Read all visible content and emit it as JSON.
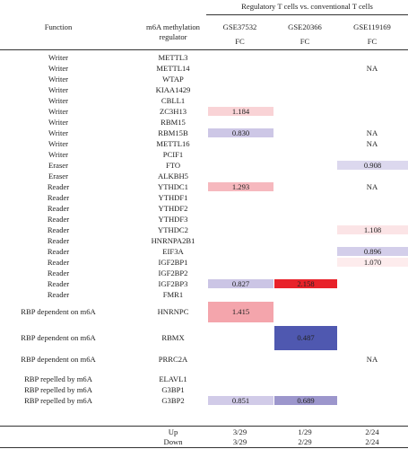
{
  "header": {
    "group_title": "Regulatory T cells vs. conventional T cells",
    "col_function": "Function",
    "col_regulator_line1": "m6A methylation",
    "col_regulator_line2": "regulator",
    "datasets": [
      "GSE37532",
      "GSE20366",
      "GSE119169"
    ],
    "fc_label": "FC"
  },
  "rows": [
    {
      "function": "Writer",
      "gene": "METTL3"
    },
    {
      "function": "Writer",
      "gene": "METTL14",
      "d3": "NA"
    },
    {
      "function": "Writer",
      "gene": "WTAP"
    },
    {
      "function": "Writer",
      "gene": "KIAA1429"
    },
    {
      "function": "Writer",
      "gene": "CBLL1"
    },
    {
      "function": "Writer",
      "gene": "ZC3H13",
      "d1": "1.184"
    },
    {
      "function": "Writer",
      "gene": "RBM15"
    },
    {
      "function": "Writer",
      "gene": "RBM15B",
      "d1": "0.830",
      "d3": "NA"
    },
    {
      "function": "Writer",
      "gene": "METTL16",
      "d3": "NA"
    },
    {
      "function": "Writer",
      "gene": "PCIF1"
    },
    {
      "function": "Eraser",
      "gene": "FTO",
      "d3": "0.908"
    },
    {
      "function": "Eraser",
      "gene": "ALKBH5"
    },
    {
      "function": "Reader",
      "gene": "YTHDC1",
      "d1": "1.293",
      "d3": "NA"
    },
    {
      "function": "Reader",
      "gene": "YTHDF1"
    },
    {
      "function": "Reader",
      "gene": "YTHDF2"
    },
    {
      "function": "Reader",
      "gene": "YTHDF3"
    },
    {
      "function": "Reader",
      "gene": "YTHDC2",
      "d3": "1.108"
    },
    {
      "function": "Reader",
      "gene": "HNRNPA2B1"
    },
    {
      "function": "Reader",
      "gene": "EIF3A",
      "d3": "0.896"
    },
    {
      "function": "Reader",
      "gene": "IGF2BP1",
      "d3": "1.070"
    },
    {
      "function": "Reader",
      "gene": "IGF2BP2"
    },
    {
      "function": "Reader",
      "gene": "IGF2BP3",
      "d1": "0.827",
      "d2": "2.158"
    },
    {
      "function": "Reader",
      "gene": "FMR1"
    },
    {
      "function": "RBP dependent on m6A",
      "gene": "HNRNPC",
      "d1": "1.415"
    },
    {
      "function": "RBP dependent on m6A",
      "gene": "RBMX",
      "d2": "0.487"
    },
    {
      "function": "RBP dependent on m6A",
      "gene": "PRRC2A",
      "d3": "NA"
    },
    {
      "function": "RBP repelled by m6A",
      "gene": "ELAVL1"
    },
    {
      "function": "RBP repelled by m6A",
      "gene": "G3BP1"
    },
    {
      "function": "RBP repelled by m6A",
      "gene": "G3BP2",
      "d1": "0.851",
      "d2": "0.689"
    }
  ],
  "summary": [
    {
      "label": "Up",
      "values": [
        "3/29",
        "1/29",
        "2/24"
      ]
    },
    {
      "label": "Down",
      "values": [
        "3/29",
        "2/29",
        "2/24"
      ]
    }
  ],
  "cell_colors": {
    "ZC3H13.d1": "#f9d3d6",
    "RBM15B.d1": "#cdc7e6",
    "FTO.d3": "#dcd8ee",
    "YTHDC1.d1": "#f6b8be",
    "YTHDC2.d3": "#fbe4e6",
    "EIF3A.d3": "#d3ceea",
    "IGF2BP1.d3": "#fdeced",
    "IGF2BP3.d1": "#cbc5e5",
    "IGF2BP3.d2": "#e8222a",
    "HNRNPC.d1": "#f4a5ac",
    "RBMX.d2": "#4f58b0",
    "G3BP2.d1": "#d1cbe8",
    "G3BP2.d2": "#9c96cc"
  }
}
